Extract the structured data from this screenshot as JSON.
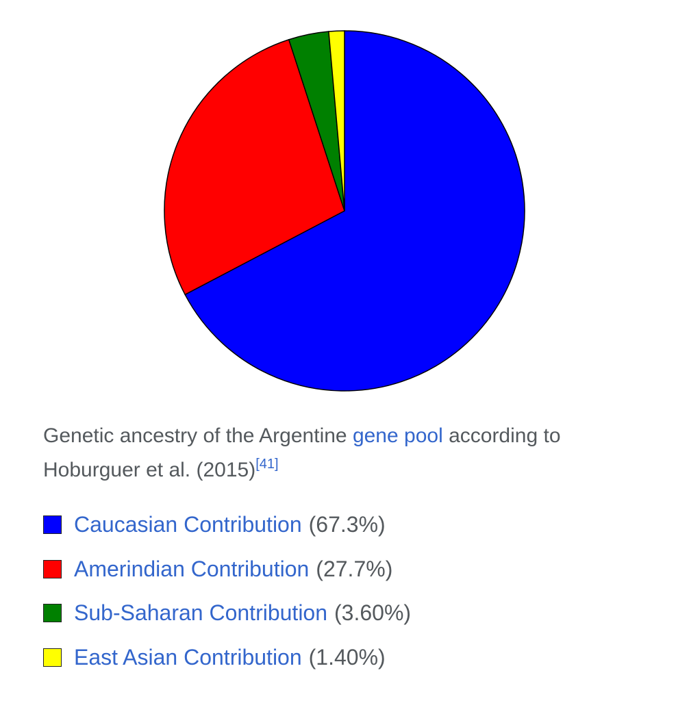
{
  "chart_data": {
    "type": "pie",
    "categories": [
      "Caucasian Contribution",
      "Amerindian Contribution",
      "Sub-Saharan Contribution",
      "East Asian Contribution"
    ],
    "values": [
      67.3,
      27.7,
      3.6,
      1.4
    ],
    "value_labels": [
      "(67.3%)",
      "(27.7%)",
      "(3.60%)",
      "(1.40%)"
    ],
    "colors": [
      "#0000ff",
      "#ff0000",
      "#008000",
      "#ffff00"
    ],
    "caption": [
      "Genetic ancestry of the Argentine ",
      "gene pool",
      " according to Hoburguer et al. (2015)",
      "[41]"
    ]
  }
}
